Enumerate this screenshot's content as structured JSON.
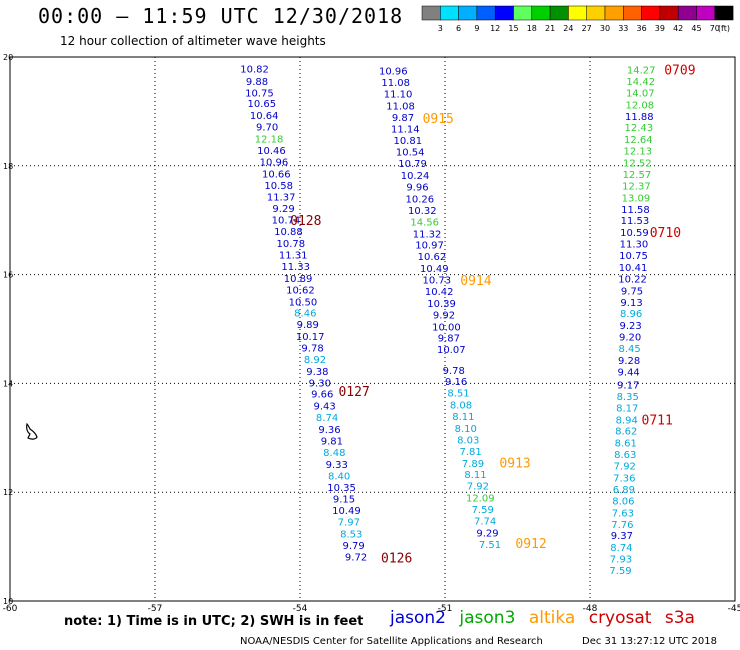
{
  "header": {
    "title": "00:00 – 11:59 UTC 12/30/2018",
    "subtitle": "12 hour collection of altimeter wave heights"
  },
  "color_scale": {
    "labels": [
      "3",
      "6",
      "9",
      "12",
      "15",
      "18",
      "21",
      "24",
      "27",
      "30",
      "33",
      "36",
      "39",
      "42",
      "45",
      "70",
      "(ft)"
    ],
    "colors": [
      "#808080",
      "#00e0ff",
      "#00b0ff",
      "#0060ff",
      "#0000ff",
      "#60ff60",
      "#00d000",
      "#009000",
      "#ffff00",
      "#ffd000",
      "#ffa000",
      "#ff6000",
      "#ff0000",
      "#c00000",
      "#900090",
      "#c000c0",
      "#000000"
    ]
  },
  "chart_data": {
    "type": "scatter",
    "xlim": [
      -60,
      -45
    ],
    "ylim": [
      10,
      20
    ],
    "x_ticks": [
      "-60",
      "-57",
      "-54",
      "-51",
      "-48",
      "-45"
    ],
    "y_ticks": [
      "10",
      "12",
      "14",
      "16",
      "18",
      "20"
    ],
    "series_colors": {
      "jason2": "#0000cc",
      "jason3": "#00aa00",
      "altika": "#ff9900",
      "cryosat": "#cc0000",
      "s3a": "#cc0000",
      "cyan": "#00aadd",
      "green": "#33cc33",
      "dkred": "#880000"
    },
    "tracks": [
      {
        "points": [
          {
            "x": -54.94,
            "y": 19.79,
            "v": "10.82",
            "c": "jason2"
          },
          {
            "x": -54.89,
            "y": 19.56,
            "v": "9.88",
            "c": "jason2"
          },
          {
            "x": -54.84,
            "y": 19.35,
            "v": "10.75",
            "c": "jason2"
          },
          {
            "x": -54.79,
            "y": 19.15,
            "v": "10.65",
            "c": "jason2"
          },
          {
            "x": -54.74,
            "y": 18.93,
            "v": "10.64",
            "c": "jason2"
          },
          {
            "x": -54.68,
            "y": 18.72,
            "v": "9.70",
            "c": "jason2"
          },
          {
            "x": -54.64,
            "y": 18.5,
            "v": "12.18",
            "c": "green"
          },
          {
            "x": -54.59,
            "y": 18.29,
            "v": "10.46",
            "c": "jason2"
          },
          {
            "x": -54.54,
            "y": 18.08,
            "v": "10.96",
            "c": "jason2"
          },
          {
            "x": -54.49,
            "y": 17.86,
            "v": "10.66",
            "c": "jason2"
          },
          {
            "x": -54.44,
            "y": 17.65,
            "v": "10.58",
            "c": "jason2"
          },
          {
            "x": -54.39,
            "y": 17.44,
            "v": "11.37",
            "c": "jason2"
          },
          {
            "x": -54.34,
            "y": 17.22,
            "v": "9.29",
            "c": "jason2"
          },
          {
            "x": -54.29,
            "y": 17.01,
            "v": "10.74",
            "c": "jason2"
          },
          {
            "x": -54.24,
            "y": 16.8,
            "v": "10.88",
            "c": "jason2"
          },
          {
            "x": -54.19,
            "y": 16.58,
            "v": "10.78",
            "c": "jason2"
          },
          {
            "x": -54.14,
            "y": 16.37,
            "v": "11.31",
            "c": "jason2"
          },
          {
            "x": -54.09,
            "y": 16.16,
            "v": "11.33",
            "c": "jason2"
          },
          {
            "x": -54.04,
            "y": 15.94,
            "v": "10.89",
            "c": "jason2"
          },
          {
            "x": -53.99,
            "y": 15.73,
            "v": "10.62",
            "c": "jason2"
          },
          {
            "x": -53.94,
            "y": 15.51,
            "v": "10.50",
            "c": "jason2"
          },
          {
            "x": -53.89,
            "y": 15.3,
            "v": "8.46",
            "c": "cyan"
          },
          {
            "x": -53.84,
            "y": 15.09,
            "v": "9.89",
            "c": "jason2"
          },
          {
            "x": -53.79,
            "y": 14.87,
            "v": "10.17",
            "c": "jason2"
          },
          {
            "x": -53.74,
            "y": 14.66,
            "v": "9.78",
            "c": "jason2"
          },
          {
            "x": -53.69,
            "y": 14.45,
            "v": "8.92",
            "c": "cyan"
          },
          {
            "x": -53.64,
            "y": 14.23,
            "v": "9.38",
            "c": "jason2"
          },
          {
            "x": -53.59,
            "y": 14.02,
            "v": "9.30",
            "c": "jason2"
          },
          {
            "x": -53.54,
            "y": 13.81,
            "v": "9.66",
            "c": "jason2"
          },
          {
            "x": -53.49,
            "y": 13.59,
            "v": "9.43",
            "c": "jason2"
          },
          {
            "x": -53.44,
            "y": 13.38,
            "v": "8.74",
            "c": "cyan"
          },
          {
            "x": -53.39,
            "y": 13.16,
            "v": "9.36",
            "c": "jason2"
          },
          {
            "x": -53.34,
            "y": 12.95,
            "v": "9.81",
            "c": "jason2"
          },
          {
            "x": -53.29,
            "y": 12.74,
            "v": "8.48",
            "c": "cyan"
          },
          {
            "x": -53.24,
            "y": 12.52,
            "v": "9.33",
            "c": "jason2"
          },
          {
            "x": -53.19,
            "y": 12.31,
            "v": "8.40",
            "c": "cyan"
          },
          {
            "x": -53.14,
            "y": 12.1,
            "v": "10.35",
            "c": "jason2"
          },
          {
            "x": -53.09,
            "y": 11.88,
            "v": "9.15",
            "c": "jason2"
          },
          {
            "x": -53.04,
            "y": 11.67,
            "v": "10.49",
            "c": "jason2"
          },
          {
            "x": -52.99,
            "y": 11.46,
            "v": "7.97",
            "c": "cyan"
          },
          {
            "x": -52.94,
            "y": 11.24,
            "v": "8.53",
            "c": "cyan"
          },
          {
            "x": -52.89,
            "y": 11.03,
            "v": "9.79",
            "c": "jason2"
          },
          {
            "x": -52.84,
            "y": 10.82,
            "v": "9.72",
            "c": "jason2"
          }
        ],
        "time_labels": [
          {
            "x": -53.88,
            "y": 17.0,
            "text": "0128",
            "c": "dkred"
          },
          {
            "x": -52.88,
            "y": 13.86,
            "text": "0127",
            "c": "dkred"
          },
          {
            "x": -52.0,
            "y": 10.8,
            "text": "0126",
            "c": "dkred"
          }
        ]
      },
      {
        "points": [
          {
            "x": -52.07,
            "y": 19.75,
            "v": "10.96",
            "c": "jason2"
          },
          {
            "x": -52.02,
            "y": 19.54,
            "v": "11.08",
            "c": "jason2"
          },
          {
            "x": -51.97,
            "y": 19.33,
            "v": "11.10",
            "c": "jason2"
          },
          {
            "x": -51.92,
            "y": 19.11,
            "v": "11.08",
            "c": "jason2"
          },
          {
            "x": -51.87,
            "y": 18.9,
            "v": "9.87",
            "c": "jason2"
          },
          {
            "x": -51.82,
            "y": 18.69,
            "v": "11.14",
            "c": "jason2"
          },
          {
            "x": -51.77,
            "y": 18.47,
            "v": "10.81",
            "c": "jason2"
          },
          {
            "x": -51.72,
            "y": 18.26,
            "v": "10.54",
            "c": "jason2"
          },
          {
            "x": -51.67,
            "y": 18.05,
            "v": "10.79",
            "c": "jason2"
          },
          {
            "x": -51.62,
            "y": 17.83,
            "v": "10.24",
            "c": "jason2"
          },
          {
            "x": -51.57,
            "y": 17.62,
            "v": "9.96",
            "c": "jason2"
          },
          {
            "x": -51.52,
            "y": 17.4,
            "v": "10.26",
            "c": "jason2"
          },
          {
            "x": -51.47,
            "y": 17.19,
            "v": "10.32",
            "c": "jason2"
          },
          {
            "x": -51.42,
            "y": 16.98,
            "v": "14.56",
            "c": "green"
          },
          {
            "x": -51.37,
            "y": 16.76,
            "v": "11.32",
            "c": "jason2"
          },
          {
            "x": -51.32,
            "y": 16.55,
            "v": "10.97",
            "c": "jason2"
          },
          {
            "x": -51.27,
            "y": 16.34,
            "v": "10.62",
            "c": "jason2"
          },
          {
            "x": -51.22,
            "y": 16.12,
            "v": "10.49",
            "c": "jason2"
          },
          {
            "x": -51.17,
            "y": 15.91,
            "v": "10.73",
            "c": "jason2"
          },
          {
            "x": -51.12,
            "y": 15.7,
            "v": "10.42",
            "c": "jason2"
          },
          {
            "x": -51.07,
            "y": 15.48,
            "v": "10.39",
            "c": "jason2"
          },
          {
            "x": -51.02,
            "y": 15.27,
            "v": "9.92",
            "c": "jason2"
          },
          {
            "x": -50.97,
            "y": 15.05,
            "v": "10.00",
            "c": "jason2"
          },
          {
            "x": -50.92,
            "y": 14.84,
            "v": "9.87",
            "c": "jason2"
          },
          {
            "x": -50.87,
            "y": 14.63,
            "v": "10.07",
            "c": "jason2"
          },
          {
            "x": -50.82,
            "y": 14.25,
            "v": "9.78",
            "c": "jason2"
          },
          {
            "x": -50.77,
            "y": 14.04,
            "v": "9.16",
            "c": "jason2"
          },
          {
            "x": -50.72,
            "y": 13.83,
            "v": "8.51",
            "c": "cyan"
          },
          {
            "x": -50.67,
            "y": 13.61,
            "v": "8.08",
            "c": "cyan"
          },
          {
            "x": -50.62,
            "y": 13.4,
            "v": "8.11",
            "c": "cyan"
          },
          {
            "x": -50.57,
            "y": 13.18,
            "v": "8.10",
            "c": "cyan"
          },
          {
            "x": -50.52,
            "y": 12.97,
            "v": "8.03",
            "c": "cyan"
          },
          {
            "x": -50.47,
            "y": 12.76,
            "v": "7.81",
            "c": "cyan"
          },
          {
            "x": -50.42,
            "y": 12.54,
            "v": "7.89",
            "c": "cyan"
          },
          {
            "x": -50.37,
            "y": 12.33,
            "v": "8.11",
            "c": "cyan"
          },
          {
            "x": -50.32,
            "y": 12.12,
            "v": "7.92",
            "c": "cyan"
          },
          {
            "x": -50.27,
            "y": 11.9,
            "v": "12.09",
            "c": "green"
          },
          {
            "x": -50.22,
            "y": 11.69,
            "v": "7.59",
            "c": "cyan"
          },
          {
            "x": -50.17,
            "y": 11.48,
            "v": "7.74",
            "c": "cyan"
          },
          {
            "x": -50.12,
            "y": 11.26,
            "v": "9.29",
            "c": "jason2"
          },
          {
            "x": -50.07,
            "y": 11.05,
            "v": "7.51",
            "c": "cyan"
          }
        ],
        "time_labels": [
          {
            "x": -51.14,
            "y": 18.88,
            "text": "0915",
            "c": "altika"
          },
          {
            "x": -50.36,
            "y": 15.9,
            "text": "0914",
            "c": "altika"
          },
          {
            "x": -49.55,
            "y": 12.55,
            "text": "0913",
            "c": "altika"
          },
          {
            "x": -49.22,
            "y": 11.07,
            "text": "0912",
            "c": "altika"
          }
        ]
      },
      {
        "points": [
          {
            "x": -46.94,
            "y": 19.77,
            "v": "14.27",
            "c": "green"
          },
          {
            "x": -46.95,
            "y": 19.56,
            "v": "14.42",
            "c": "green"
          },
          {
            "x": -46.96,
            "y": 19.35,
            "v": "14.07",
            "c": "green"
          },
          {
            "x": -46.97,
            "y": 19.13,
            "v": "12.08",
            "c": "green"
          },
          {
            "x": -46.98,
            "y": 18.92,
            "v": "11.88",
            "c": "jason2"
          },
          {
            "x": -46.99,
            "y": 18.71,
            "v": "12.43",
            "c": "green"
          },
          {
            "x": -47.0,
            "y": 18.49,
            "v": "12.64",
            "c": "green"
          },
          {
            "x": -47.01,
            "y": 18.28,
            "v": "12.13",
            "c": "green"
          },
          {
            "x": -47.02,
            "y": 18.06,
            "v": "12.52",
            "c": "green"
          },
          {
            "x": -47.03,
            "y": 17.85,
            "v": "12.57",
            "c": "green"
          },
          {
            "x": -47.04,
            "y": 17.64,
            "v": "12.37",
            "c": "green"
          },
          {
            "x": -47.05,
            "y": 17.42,
            "v": "13.09",
            "c": "green"
          },
          {
            "x": -47.06,
            "y": 17.21,
            "v": "11.58",
            "c": "jason2"
          },
          {
            "x": -47.07,
            "y": 17.0,
            "v": "11.53",
            "c": "jason2"
          },
          {
            "x": -47.08,
            "y": 16.78,
            "v": "10.59",
            "c": "jason2"
          },
          {
            "x": -47.09,
            "y": 16.57,
            "v": "11.30",
            "c": "jason2"
          },
          {
            "x": -47.1,
            "y": 16.36,
            "v": "10.75",
            "c": "jason2"
          },
          {
            "x": -47.11,
            "y": 16.14,
            "v": "10.41",
            "c": "jason2"
          },
          {
            "x": -47.12,
            "y": 15.93,
            "v": "10.22",
            "c": "jason2"
          },
          {
            "x": -47.13,
            "y": 15.71,
            "v": "9.75",
            "c": "jason2"
          },
          {
            "x": -47.14,
            "y": 15.5,
            "v": "9.13",
            "c": "jason2"
          },
          {
            "x": -47.15,
            "y": 15.29,
            "v": "8.96",
            "c": "cyan"
          },
          {
            "x": -47.16,
            "y": 15.07,
            "v": "9.23",
            "c": "jason2"
          },
          {
            "x": -47.17,
            "y": 14.86,
            "v": "9.20",
            "c": "jason2"
          },
          {
            "x": -47.18,
            "y": 14.65,
            "v": "8.45",
            "c": "cyan"
          },
          {
            "x": -47.19,
            "y": 14.43,
            "v": "9.28",
            "c": "jason2"
          },
          {
            "x": -47.2,
            "y": 14.22,
            "v": "9.44",
            "c": "jason2"
          },
          {
            "x": -47.21,
            "y": 13.98,
            "v": "9.17",
            "c": "jason2"
          },
          {
            "x": -47.22,
            "y": 13.77,
            "v": "8.35",
            "c": "cyan"
          },
          {
            "x": -47.23,
            "y": 13.56,
            "v": "8.17",
            "c": "cyan"
          },
          {
            "x": -47.24,
            "y": 13.34,
            "v": "8.94",
            "c": "cyan"
          },
          {
            "x": -47.25,
            "y": 13.13,
            "v": "8.62",
            "c": "cyan"
          },
          {
            "x": -47.26,
            "y": 12.91,
            "v": "8.61",
            "c": "cyan"
          },
          {
            "x": -47.27,
            "y": 12.7,
            "v": "8.63",
            "c": "cyan"
          },
          {
            "x": -47.28,
            "y": 12.49,
            "v": "7.92",
            "c": "cyan"
          },
          {
            "x": -47.29,
            "y": 12.27,
            "v": "7.36",
            "c": "cyan"
          },
          {
            "x": -47.3,
            "y": 12.06,
            "v": "6.89",
            "c": "cyan"
          },
          {
            "x": -47.31,
            "y": 11.85,
            "v": "8.06",
            "c": "cyan"
          },
          {
            "x": -47.32,
            "y": 11.63,
            "v": "7.63",
            "c": "cyan"
          },
          {
            "x": -47.33,
            "y": 11.42,
            "v": "7.76",
            "c": "cyan"
          },
          {
            "x": -47.34,
            "y": 11.21,
            "v": "9.37",
            "c": "jason2"
          },
          {
            "x": -47.35,
            "y": 10.99,
            "v": "8.74",
            "c": "cyan"
          },
          {
            "x": -47.36,
            "y": 10.78,
            "v": "7.93",
            "c": "cyan"
          },
          {
            "x": -47.37,
            "y": 10.57,
            "v": "7.59",
            "c": "cyan"
          }
        ],
        "time_labels": [
          {
            "x": -46.14,
            "y": 19.77,
            "text": "0709",
            "c": "cryosat"
          },
          {
            "x": -46.44,
            "y": 16.78,
            "text": "0710",
            "c": "cryosat"
          },
          {
            "x": -46.61,
            "y": 13.34,
            "text": "0711",
            "c": "cryosat"
          }
        ]
      }
    ]
  },
  "legend": {
    "note": "note: 1) Time is in UTC; 2) SWH is in feet",
    "names": [
      {
        "label": "jason2",
        "color": "#0000cc"
      },
      {
        "label": "jason3",
        "color": "#00aa00"
      },
      {
        "label": "altika",
        "color": "#ff9900"
      },
      {
        "label": "cryosat",
        "color": "#cc0000"
      },
      {
        "label": "s3a",
        "color": "#cc0000"
      }
    ]
  },
  "footer": {
    "source": "NOAA/NESDIS Center for Satellite Applications and Research",
    "timestamp": "Dec 31 13:27:12 UTC 2018"
  }
}
